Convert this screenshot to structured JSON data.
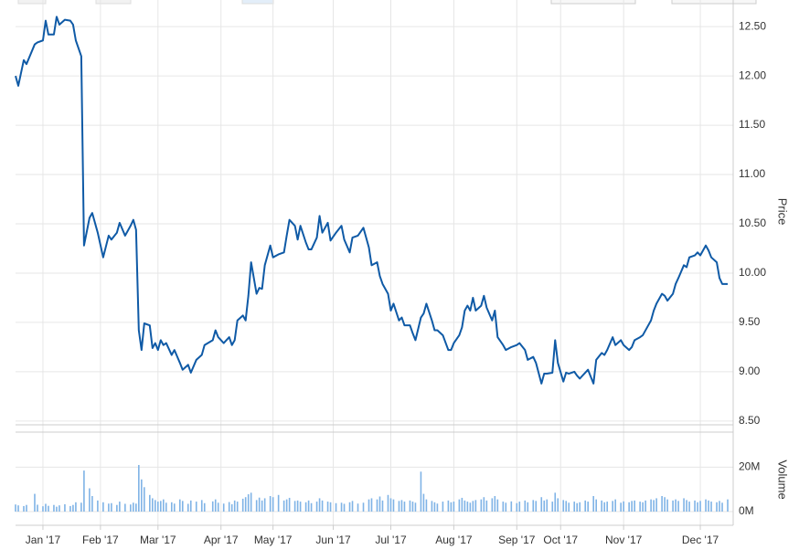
{
  "chart_data": [
    {
      "type": "line",
      "ylabel": "Price",
      "x": [
        0,
        1,
        3,
        4,
        7,
        8,
        10,
        11,
        12,
        14,
        15,
        16,
        18,
        20,
        21,
        22,
        24,
        25,
        27,
        28,
        30,
        32,
        34,
        35,
        37,
        38,
        40,
        42,
        43,
        44,
        45,
        46,
        47,
        49,
        50,
        51,
        52,
        53,
        54,
        55,
        57,
        58,
        60,
        61,
        63,
        64,
        66,
        68,
        69,
        72,
        73,
        74,
        76,
        78,
        79,
        80,
        81,
        83,
        84,
        85,
        86,
        88,
        89,
        90,
        91,
        93,
        94,
        96,
        98,
        99,
        100,
        102,
        103,
        104,
        106,
        107,
        108,
        110,
        111,
        112,
        114,
        115,
        117,
        119,
        120,
        122,
        123,
        125,
        127,
        129,
        130,
        132,
        133,
        134,
        136,
        137,
        138,
        140,
        141,
        142,
        144,
        145,
        146,
        148,
        149,
        150,
        152,
        153,
        154,
        156,
        158,
        159,
        160,
        162,
        163,
        164,
        165,
        166,
        167,
        168,
        170,
        171,
        172,
        174,
        175,
        176,
        178,
        179,
        181,
        183,
        184,
        186,
        187,
        189,
        190,
        192,
        193,
        194,
        196,
        197,
        198,
        200,
        201,
        202,
        204,
        205,
        206,
        208,
        209,
        211,
        212,
        214,
        215,
        216,
        218,
        219,
        221,
        222,
        224,
        225,
        226,
        228,
        229,
        230,
        232,
        233,
        234,
        236,
        237,
        238,
        240,
        241,
        242,
        244,
        245,
        246,
        248,
        249,
        250,
        252,
        253,
        254,
        256,
        257,
        258,
        260
      ],
      "series": [
        {
          "color": "#0f5aa6",
          "values": [
            12.0,
            11.9,
            12.16,
            12.12,
            12.32,
            12.34,
            12.36,
            12.56,
            12.42,
            12.42,
            12.6,
            12.52,
            12.57,
            12.56,
            12.52,
            12.36,
            12.2,
            10.28,
            10.56,
            10.61,
            10.41,
            10.16,
            10.38,
            10.34,
            10.41,
            10.51,
            10.38,
            10.48,
            10.54,
            10.44,
            9.42,
            9.22,
            9.49,
            9.47,
            9.24,
            9.29,
            9.22,
            9.32,
            9.27,
            9.29,
            9.17,
            9.22,
            9.09,
            9.02,
            9.07,
            8.99,
            9.12,
            9.17,
            9.27,
            9.32,
            9.42,
            9.35,
            9.29,
            9.35,
            9.27,
            9.32,
            9.52,
            9.57,
            9.52,
            9.77,
            10.11,
            9.79,
            9.85,
            9.84,
            10.08,
            10.28,
            10.16,
            10.19,
            10.21,
            10.38,
            10.54,
            10.48,
            10.34,
            10.48,
            10.31,
            10.24,
            10.24,
            10.36,
            10.58,
            10.41,
            10.51,
            10.33,
            10.41,
            10.48,
            10.34,
            10.21,
            10.36,
            10.38,
            10.46,
            10.26,
            10.08,
            10.11,
            9.97,
            9.89,
            9.79,
            9.62,
            9.69,
            9.52,
            9.55,
            9.47,
            9.47,
            9.39,
            9.32,
            9.55,
            9.59,
            9.69,
            9.52,
            9.42,
            9.42,
            9.37,
            9.22,
            9.22,
            9.29,
            9.37,
            9.45,
            9.62,
            9.67,
            9.62,
            9.75,
            9.62,
            9.67,
            9.77,
            9.65,
            9.52,
            9.62,
            9.35,
            9.27,
            9.22,
            9.25,
            9.27,
            9.29,
            9.22,
            9.12,
            9.15,
            9.09,
            8.88,
            8.98,
            8.98,
            8.99,
            9.32,
            9.09,
            8.9,
            8.99,
            8.98,
            9.0,
            8.96,
            8.93,
            8.99,
            9.02,
            8.88,
            9.12,
            9.19,
            9.17,
            9.22,
            9.35,
            9.27,
            9.32,
            9.27,
            9.22,
            9.25,
            9.32,
            9.35,
            9.37,
            9.42,
            9.52,
            9.62,
            9.69,
            9.79,
            9.77,
            9.72,
            9.79,
            9.89,
            9.95,
            10.08,
            10.06,
            10.16,
            10.18,
            10.21,
            10.18,
            10.28,
            10.23,
            10.16,
            10.11,
            9.95,
            9.89,
            9.89
          ]
        }
      ],
      "xlim": [
        0,
        262
      ],
      "ylim": [
        8.48,
        12.77
      ],
      "yticks": [
        {
          "value": 8.5,
          "label": "8.50"
        },
        {
          "value": 9,
          "label": "9.00"
        },
        {
          "value": 9.5,
          "label": "9.50"
        },
        {
          "value": 10,
          "label": "10.00"
        },
        {
          "value": 10.5,
          "label": "10.50"
        },
        {
          "value": 11,
          "label": "11.00"
        },
        {
          "value": 11.5,
          "label": "11.50"
        },
        {
          "value": 12,
          "label": "12.00"
        },
        {
          "value": 12.5,
          "label": "12.50"
        }
      ],
      "grid": true
    },
    {
      "type": "bar",
      "ylabel": "Volume",
      "x": [
        0,
        1,
        3,
        4,
        7,
        8,
        10,
        11,
        12,
        14,
        15,
        16,
        18,
        20,
        21,
        22,
        24,
        25,
        27,
        28,
        30,
        32,
        34,
        35,
        37,
        38,
        40,
        42,
        43,
        44,
        45,
        46,
        47,
        49,
        50,
        51,
        52,
        53,
        54,
        55,
        57,
        58,
        60,
        61,
        63,
        64,
        66,
        68,
        69,
        72,
        73,
        74,
        76,
        78,
        79,
        80,
        81,
        83,
        84,
        85,
        86,
        88,
        89,
        90,
        91,
        93,
        94,
        96,
        98,
        99,
        100,
        102,
        103,
        104,
        106,
        107,
        108,
        110,
        111,
        112,
        114,
        115,
        117,
        119,
        120,
        122,
        123,
        125,
        127,
        129,
        130,
        132,
        133,
        134,
        136,
        137,
        138,
        140,
        141,
        142,
        144,
        145,
        146,
        148,
        149,
        150,
        152,
        153,
        154,
        156,
        158,
        159,
        160,
        162,
        163,
        164,
        165,
        166,
        167,
        168,
        170,
        171,
        172,
        174,
        175,
        176,
        178,
        179,
        181,
        183,
        184,
        186,
        187,
        189,
        190,
        192,
        193,
        194,
        196,
        197,
        198,
        200,
        201,
        202,
        204,
        205,
        206,
        208,
        209,
        211,
        212,
        214,
        215,
        216,
        218,
        219,
        221,
        222,
        224,
        225,
        226,
        228,
        229,
        230,
        232,
        233,
        234,
        236,
        237,
        238,
        240,
        241,
        242,
        244,
        245,
        246,
        248,
        249,
        250,
        252,
        253,
        254,
        256,
        257,
        258,
        260
      ],
      "color": "#7fb3e6",
      "values": [
        3.2,
        2.8,
        2.5,
        3.0,
        8.0,
        3.1,
        2.4,
        3.5,
        2.6,
        3.0,
        2.2,
        2.8,
        3.3,
        2.5,
        3.0,
        4.2,
        4.0,
        18.5,
        10.5,
        7.0,
        5.0,
        4.2,
        3.6,
        3.8,
        3.0,
        4.5,
        3.5,
        3.2,
        4.0,
        3.6,
        21.0,
        14.5,
        11.0,
        7.5,
        6.0,
        5.2,
        4.5,
        4.8,
        5.5,
        4.0,
        4.2,
        3.6,
        5.5,
        4.8,
        3.5,
        5.0,
        4.5,
        5.2,
        3.8,
        4.6,
        5.5,
        4.0,
        3.6,
        4.3,
        3.3,
        5.0,
        4.5,
        5.8,
        6.5,
        7.8,
        8.5,
        5.2,
        6.3,
        5.0,
        6.0,
        7.0,
        6.5,
        7.5,
        5.0,
        5.5,
        6.2,
        4.8,
        5.0,
        4.5,
        4.2,
        5.0,
        3.8,
        4.5,
        6.0,
        5.0,
        4.5,
        4.2,
        3.8,
        4.0,
        3.5,
        4.2,
        4.8,
        3.6,
        4.0,
        5.5,
        6.0,
        5.5,
        6.8,
        5.0,
        7.5,
        6.0,
        5.5,
        4.8,
        5.2,
        4.5,
        5.0,
        4.5,
        4.0,
        18.0,
        8.0,
        5.5,
        4.8,
        4.2,
        3.6,
        4.5,
        5.0,
        4.2,
        4.5,
        5.5,
        6.2,
        5.0,
        4.5,
        4.0,
        4.8,
        5.2,
        5.5,
        6.5,
        5.0,
        6.0,
        7.0,
        5.5,
        4.5,
        4.0,
        4.6,
        3.8,
        4.5,
        5.0,
        4.2,
        5.2,
        4.8,
        6.5,
        5.0,
        5.5,
        4.5,
        8.5,
        6.0,
        5.2,
        4.8,
        4.0,
        4.5,
        3.8,
        4.2,
        5.0,
        4.5,
        7.0,
        5.5,
        5.0,
        4.2,
        4.5,
        4.8,
        5.5,
        4.0,
        4.6,
        4.2,
        4.8,
        5.0,
        4.5,
        4.2,
        5.0,
        5.5,
        5.2,
        6.0,
        7.0,
        6.5,
        5.5,
        5.0,
        5.5,
        4.8,
        6.0,
        5.2,
        4.5,
        5.0,
        4.2,
        4.8,
        5.5,
        5.0,
        4.5,
        4.2,
        4.8,
        4.0,
        5.5
      ],
      "xlim": [
        0,
        262
      ],
      "ylim": [
        0,
        35
      ],
      "yticks": [
        {
          "value": 0,
          "label": "0M"
        },
        {
          "value": 20,
          "label": "20M"
        }
      ],
      "xticks": [
        {
          "value": 10,
          "label": "Jan '17"
        },
        {
          "value": 31,
          "label": "Feb '17"
        },
        {
          "value": 52,
          "label": "Mar '17"
        },
        {
          "value": 75,
          "label": "Apr '17"
        },
        {
          "value": 94,
          "label": "May '17"
        },
        {
          "value": 116,
          "label": "Jun '17"
        },
        {
          "value": 137,
          "label": "Jul '17"
        },
        {
          "value": 160,
          "label": "Aug '17"
        },
        {
          "value": 183,
          "label": "Sep '17"
        },
        {
          "value": 199,
          "label": "Oct '17"
        },
        {
          "value": 222,
          "label": "Nov '17"
        },
        {
          "value": 250,
          "label": "Dec '17"
        }
      ],
      "grid": true
    }
  ]
}
